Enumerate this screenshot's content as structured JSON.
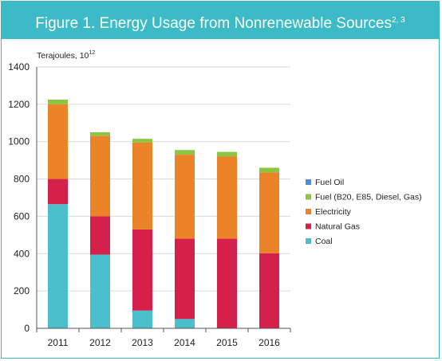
{
  "header": {
    "title": "Figure 1. Energy Usage from Nonrenewable Sources",
    "superscript": "2, 3"
  },
  "chart_data": {
    "type": "bar",
    "stacked": true,
    "title": "Figure 1. Energy Usage from Nonrenewable Sources",
    "unit_label_main": "Terajoules, 10",
    "unit_label_exp": "12",
    "categories": [
      "2011",
      "2012",
      "2013",
      "2014",
      "2015",
      "2016"
    ],
    "ylim": [
      0,
      1400
    ],
    "yticks": [
      0,
      200,
      400,
      600,
      800,
      1000,
      1200,
      1400
    ],
    "legend_position": "right",
    "series": [
      {
        "name": "Coal",
        "color": "#4bbfcc",
        "values": [
          665,
          395,
          95,
          50,
          0,
          0
        ]
      },
      {
        "name": "Natural Gas",
        "color": "#d6204c",
        "values": [
          135,
          205,
          435,
          430,
          480,
          402
        ]
      },
      {
        "name": "Electricity",
        "color": "#ec8329",
        "values": [
          400,
          430,
          465,
          450,
          440,
          433
        ]
      },
      {
        "name": "Fuel (B20, E85, Diesel, Gas)",
        "color": "#8cc542",
        "values": [
          25,
          20,
          20,
          25,
          25,
          25
        ]
      },
      {
        "name": "Fuel Oil",
        "color": "#4a90d9",
        "values": [
          0,
          0,
          0,
          0,
          0,
          0
        ]
      }
    ],
    "legend_order": [
      "Fuel Oil",
      "Fuel (B20, E85, Diesel, Gas)",
      "Electricity",
      "Natural Gas",
      "Coal"
    ]
  }
}
